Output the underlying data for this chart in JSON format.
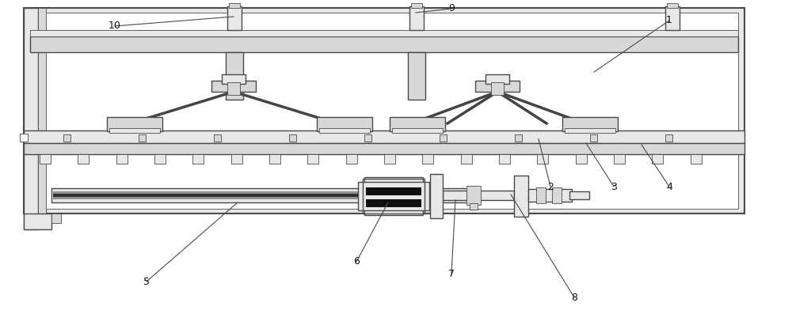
{
  "background_color": "#ffffff",
  "lc": "#4a4a4a",
  "fg": "#d8d8d8",
  "fl": "#e8e8e8",
  "fm": "#c0c0c0",
  "dark": "#333333",
  "black": "#111111",
  "lw_main": 1.0,
  "lw_thick": 1.5,
  "lw_thin": 0.6,
  "lw_arm": 2.0
}
